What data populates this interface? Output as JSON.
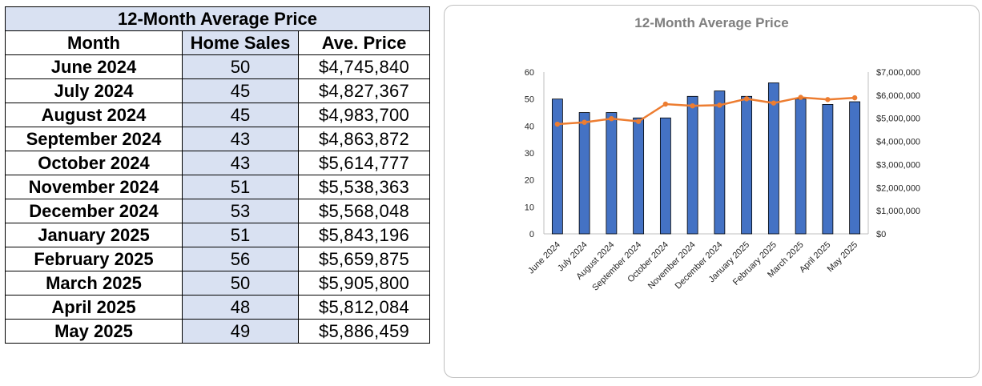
{
  "table": {
    "title": "12-Month Average Price",
    "headers": [
      "Month",
      "Home Sales",
      "Ave. Price"
    ],
    "rows": [
      {
        "month": "June 2024",
        "sales": "50",
        "price": "$4,745,840"
      },
      {
        "month": "July 2024",
        "sales": "45",
        "price": "$4,827,367"
      },
      {
        "month": "August 2024",
        "sales": "45",
        "price": "$4,983,700"
      },
      {
        "month": "September 2024",
        "sales": "43",
        "price": "$4,863,872"
      },
      {
        "month": "October 2024",
        "sales": "43",
        "price": "$5,614,777"
      },
      {
        "month": "November 2024",
        "sales": "51",
        "price": "$5,538,363"
      },
      {
        "month": "December 2024",
        "sales": "53",
        "price": "$5,568,048"
      },
      {
        "month": "January 2025",
        "sales": "51",
        "price": "$5,843,196"
      },
      {
        "month": "February 2025",
        "sales": "56",
        "price": "$5,659,875"
      },
      {
        "month": "March 2025",
        "sales": "50",
        "price": "$5,905,800"
      },
      {
        "month": "April 2025",
        "sales": "48",
        "price": "$5,812,084"
      },
      {
        "month": "May 2025",
        "sales": "49",
        "price": "$5,886,459"
      }
    ]
  },
  "chart_data": {
    "type": "bar",
    "title": "12-Month Average Price",
    "categories": [
      "June 2024",
      "July 2024",
      "August 2024",
      "September 2024",
      "October 2024",
      "November 2024",
      "December 2024",
      "January 2025",
      "February 2025",
      "March 2025",
      "April 2025",
      "May 2025"
    ],
    "series": [
      {
        "type": "bar",
        "axis": "left",
        "values": [
          50,
          45,
          45,
          43,
          43,
          51,
          53,
          51,
          56,
          50,
          48,
          49
        ]
      },
      {
        "type": "line",
        "axis": "right",
        "values": [
          4745840,
          4827367,
          4983700,
          4863872,
          5614777,
          5538363,
          5568048,
          5843196,
          5659875,
          5905800,
          5812084,
          5886459
        ]
      }
    ],
    "ylim": [
      0,
      60
    ],
    "y_ticks": [
      "0",
      "10",
      "20",
      "30",
      "40",
      "50",
      "60"
    ],
    "y2lim": [
      0,
      7000000
    ],
    "y2_ticks": [
      "$0",
      "$1,000,000",
      "$2,000,000",
      "$3,000,000",
      "$4,000,000",
      "$5,000,000",
      "$6,000,000",
      "$7,000,000"
    ],
    "grid": false,
    "legend": "none",
    "colors": {
      "bar": "#4472c4",
      "bar_edge": "#000000",
      "line": "#ed7d31"
    }
  }
}
